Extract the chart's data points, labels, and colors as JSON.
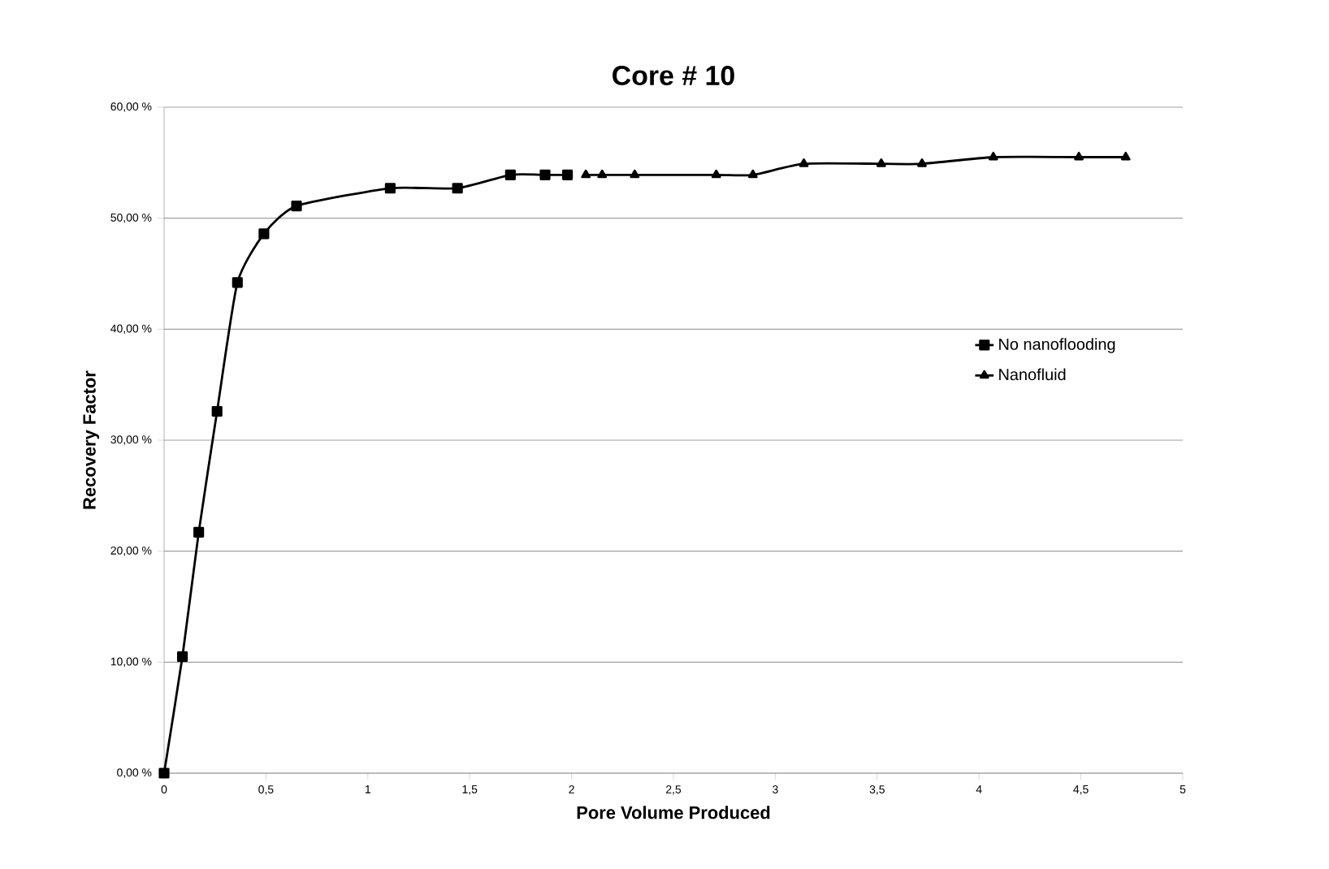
{
  "chart_data": {
    "type": "line",
    "title": "Core # 10",
    "xlabel": "Pore Volume  Produced",
    "ylabel": "Recovery  Factor",
    "xlim": [
      0,
      5
    ],
    "xticks": [
      0,
      {
        "value": 0.5,
        "label": "0,5"
      },
      1,
      {
        "value": 1.5,
        "label": "1,5"
      },
      2,
      {
        "value": 2.5,
        "label": "2,5"
      },
      3,
      {
        "value": 3.5,
        "label": "3,5"
      },
      4,
      {
        "value": 4.5,
        "label": "4,5"
      },
      5
    ],
    "ylim": [
      0,
      60
    ],
    "yticks": [
      {
        "value": 0,
        "label": "0,00 %"
      },
      {
        "value": 10,
        "label": "10,00 %"
      },
      {
        "value": 20,
        "label": "20,00 %"
      },
      {
        "value": 30,
        "label": "30,00 %"
      },
      {
        "value": 40,
        "label": "40,00 %"
      },
      {
        "value": 50,
        "label": "50,00 %"
      },
      {
        "value": 60,
        "label": "60,00 %"
      }
    ],
    "grid": "y",
    "legend": "right",
    "series": [
      {
        "name": "No nanoflooding",
        "color": "#000000",
        "marker": "square",
        "x": [
          0,
          0.09,
          0.17,
          0.26,
          0.36,
          0.49,
          0.65,
          1.11,
          1.44,
          1.7,
          1.87,
          1.98
        ],
        "values": [
          0,
          10.5,
          21.7,
          32.6,
          44.2,
          48.6,
          51.1,
          52.7,
          52.7,
          53.9,
          53.9,
          53.9
        ]
      },
      {
        "name": "Nanofluid",
        "color": "#000000",
        "marker": "triangle",
        "x": [
          2.07,
          2.15,
          2.31,
          2.71,
          2.89,
          3.14,
          3.52,
          3.72,
          4.07,
          4.49,
          4.72
        ],
        "values": [
          53.9,
          53.9,
          53.9,
          53.9,
          53.9,
          54.9,
          54.9,
          54.9,
          55.5,
          55.5,
          55.5
        ]
      }
    ]
  }
}
